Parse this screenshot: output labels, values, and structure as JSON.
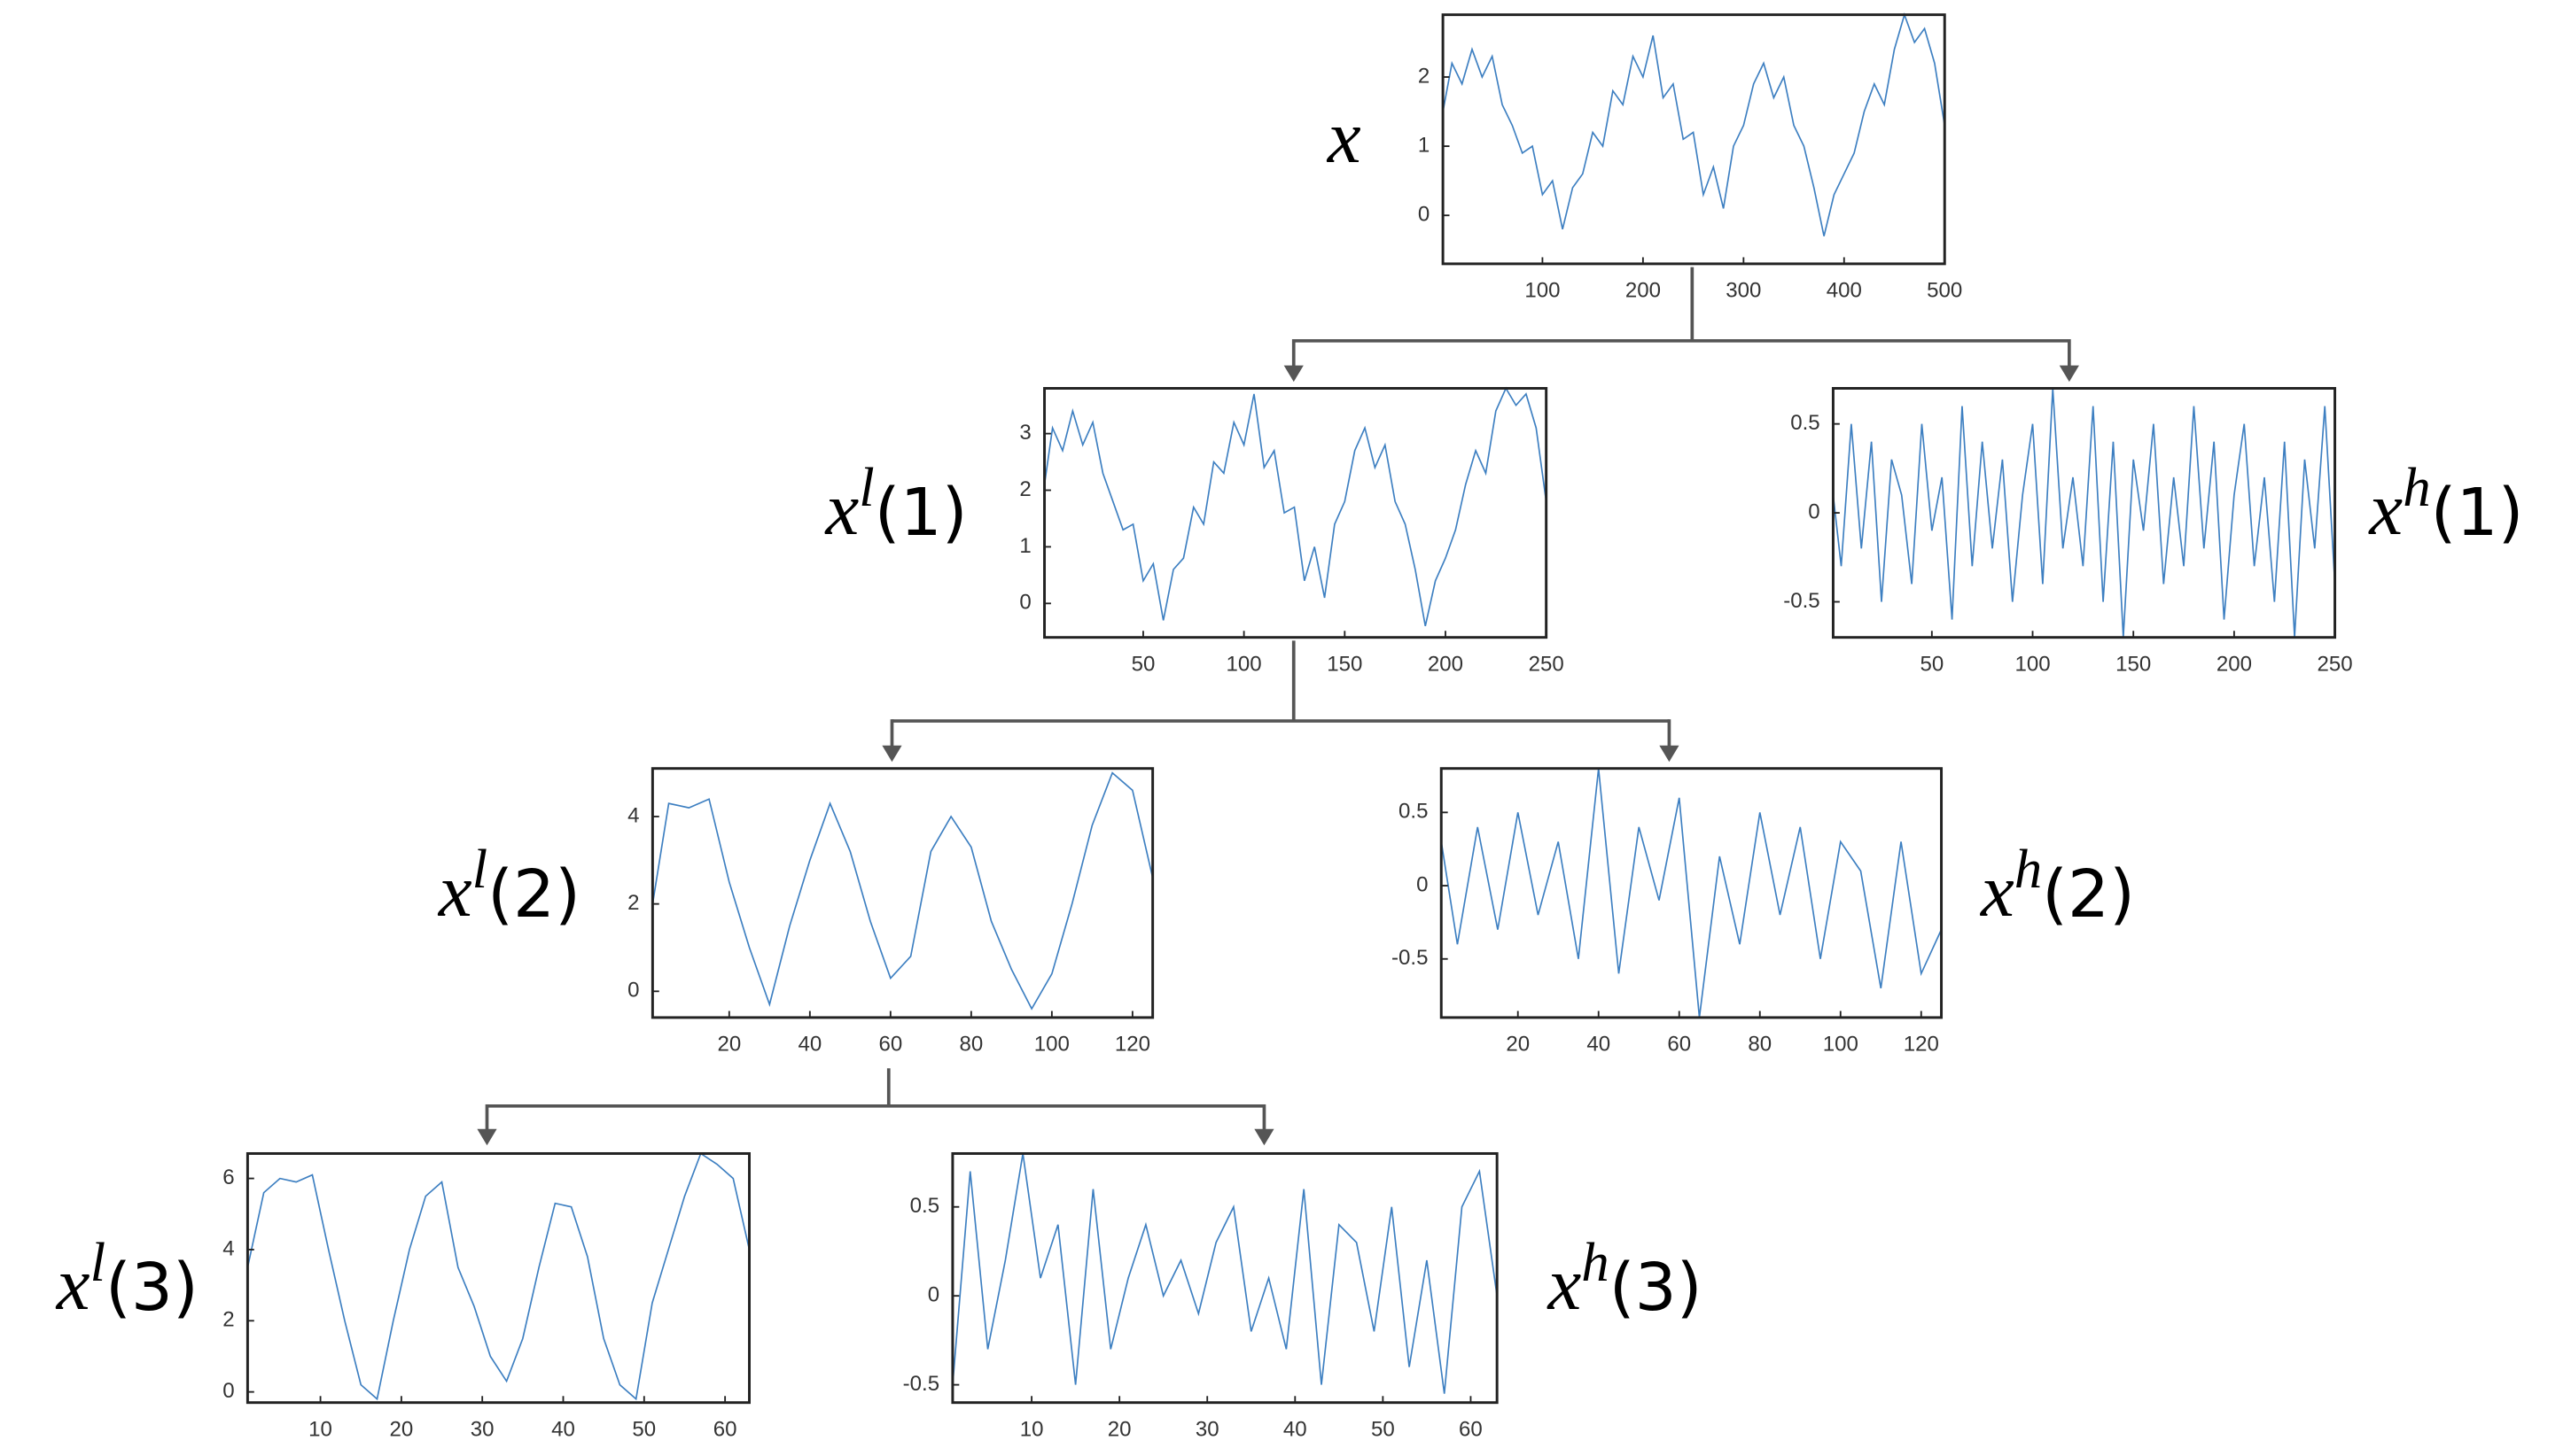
{
  "chart_data": [
    {
      "type": "line",
      "label": {
        "base": "x"
      },
      "color": "#3d7fc1",
      "x": [
        1,
        10,
        20,
        30,
        40,
        50,
        60,
        70,
        80,
        90,
        100,
        110,
        120,
        130,
        140,
        150,
        160,
        170,
        180,
        190,
        200,
        210,
        220,
        230,
        240,
        250,
        260,
        270,
        280,
        290,
        300,
        310,
        320,
        330,
        340,
        350,
        360,
        370,
        380,
        390,
        400,
        410,
        420,
        430,
        440,
        450,
        460,
        470,
        480,
        490,
        500
      ],
      "values": [
        1.5,
        2.2,
        1.9,
        2.4,
        2.0,
        2.3,
        1.6,
        1.3,
        0.9,
        1.0,
        0.3,
        0.5,
        -0.2,
        0.4,
        0.6,
        1.2,
        1.0,
        1.8,
        1.6,
        2.3,
        2.0,
        2.6,
        1.7,
        1.9,
        1.1,
        1.2,
        0.3,
        0.7,
        0.1,
        1.0,
        1.3,
        1.9,
        2.2,
        1.7,
        2.0,
        1.3,
        1.0,
        0.4,
        -0.3,
        0.3,
        0.6,
        0.9,
        1.5,
        1.9,
        1.6,
        2.4,
        2.9,
        2.5,
        2.7,
        2.2,
        1.3
      ],
      "xlim": [
        1,
        500
      ],
      "ylim": [
        -0.7,
        2.9
      ],
      "xticks": [
        100,
        200,
        300,
        400,
        500
      ],
      "yticks": [
        0,
        1,
        2
      ]
    },
    {
      "type": "line",
      "label": {
        "base": "x",
        "sup": "l",
        "index": "(1)"
      },
      "color": "#3d7fc1",
      "x": [
        1,
        5,
        10,
        15,
        20,
        25,
        30,
        35,
        40,
        45,
        50,
        55,
        60,
        65,
        70,
        75,
        80,
        85,
        90,
        95,
        100,
        105,
        110,
        115,
        120,
        125,
        130,
        135,
        140,
        145,
        150,
        155,
        160,
        165,
        170,
        175,
        180,
        185,
        190,
        195,
        200,
        205,
        210,
        215,
        220,
        225,
        230,
        235,
        240,
        245,
        250
      ],
      "values": [
        2.1,
        3.1,
        2.7,
        3.4,
        2.8,
        3.2,
        2.3,
        1.8,
        1.3,
        1.4,
        0.4,
        0.7,
        -0.3,
        0.6,
        0.8,
        1.7,
        1.4,
        2.5,
        2.3,
        3.2,
        2.8,
        3.7,
        2.4,
        2.7,
        1.6,
        1.7,
        0.4,
        1.0,
        0.1,
        1.4,
        1.8,
        2.7,
        3.1,
        2.4,
        2.8,
        1.8,
        1.4,
        0.6,
        -0.4,
        0.4,
        0.8,
        1.3,
        2.1,
        2.7,
        2.3,
        3.4,
        3.8,
        3.5,
        3.7,
        3.1,
        1.8
      ],
      "xlim": [
        1,
        250
      ],
      "ylim": [
        -0.6,
        3.8
      ],
      "xticks": [
        50,
        100,
        150,
        200,
        250
      ],
      "yticks": [
        0,
        1,
        2,
        3
      ]
    },
    {
      "type": "line",
      "label": {
        "base": "x",
        "sup": "h",
        "index": "(1)"
      },
      "color": "#3d7fc1",
      "x": [
        1,
        5,
        10,
        15,
        20,
        25,
        30,
        35,
        40,
        45,
        50,
        55,
        60,
        65,
        70,
        75,
        80,
        85,
        90,
        95,
        100,
        105,
        110,
        115,
        120,
        125,
        130,
        135,
        140,
        145,
        150,
        155,
        160,
        165,
        170,
        175,
        180,
        185,
        190,
        195,
        200,
        205,
        210,
        215,
        220,
        225,
        230,
        235,
        240,
        245,
        250
      ],
      "values": [
        0.1,
        -0.3,
        0.5,
        -0.2,
        0.4,
        -0.5,
        0.3,
        0.1,
        -0.4,
        0.5,
        -0.1,
        0.2,
        -0.6,
        0.6,
        -0.3,
        0.4,
        -0.2,
        0.3,
        -0.5,
        0.1,
        0.5,
        -0.4,
        0.7,
        -0.2,
        0.2,
        -0.3,
        0.6,
        -0.5,
        0.4,
        -0.7,
        0.3,
        -0.1,
        0.5,
        -0.4,
        0.2,
        -0.3,
        0.6,
        -0.2,
        0.4,
        -0.6,
        0.1,
        0.5,
        -0.3,
        0.2,
        -0.5,
        0.4,
        -0.7,
        0.3,
        -0.2,
        0.6,
        -0.4
      ],
      "xlim": [
        1,
        250
      ],
      "ylim": [
        -0.7,
        0.7
      ],
      "xticks": [
        50,
        100,
        150,
        200,
        250
      ],
      "yticks": [
        -0.5,
        0,
        0.5
      ]
    },
    {
      "type": "line",
      "label": {
        "base": "x",
        "sup": "l",
        "index": "(2)"
      },
      "color": "#3d7fc1",
      "x": [
        1,
        5,
        10,
        15,
        20,
        25,
        30,
        35,
        40,
        45,
        50,
        55,
        60,
        65,
        70,
        75,
        80,
        85,
        90,
        95,
        100,
        105,
        110,
        115,
        120,
        125
      ],
      "values": [
        2.0,
        4.3,
        4.2,
        4.4,
        2.5,
        1.0,
        -0.3,
        1.5,
        3.0,
        4.3,
        3.2,
        1.6,
        0.3,
        0.8,
        3.2,
        4.0,
        3.3,
        1.6,
        0.5,
        -0.4,
        0.4,
        2.0,
        3.8,
        5.0,
        4.6,
        2.6
      ],
      "xlim": [
        1,
        125
      ],
      "ylim": [
        -0.6,
        5.1
      ],
      "xticks": [
        20,
        40,
        60,
        80,
        100,
        120
      ],
      "yticks": [
        0,
        2,
        4
      ]
    },
    {
      "type": "line",
      "label": {
        "base": "x",
        "sup": "h",
        "index": "(2)"
      },
      "color": "#3d7fc1",
      "x": [
        1,
        5,
        10,
        15,
        20,
        25,
        30,
        35,
        40,
        45,
        50,
        55,
        60,
        65,
        70,
        75,
        80,
        85,
        90,
        95,
        100,
        105,
        110,
        115,
        120,
        125
      ],
      "values": [
        0.3,
        -0.4,
        0.4,
        -0.3,
        0.5,
        -0.2,
        0.3,
        -0.5,
        0.8,
        -0.6,
        0.4,
        -0.1,
        0.6,
        -0.9,
        0.2,
        -0.4,
        0.5,
        -0.2,
        0.4,
        -0.5,
        0.3,
        0.1,
        -0.7,
        0.3,
        -0.6,
        -0.3
      ],
      "xlim": [
        1,
        125
      ],
      "ylim": [
        -0.9,
        0.8
      ],
      "xticks": [
        20,
        40,
        60,
        80,
        100,
        120
      ],
      "yticks": [
        -0.5,
        0,
        0.5
      ]
    },
    {
      "type": "line",
      "label": {
        "base": "x",
        "sup": "l",
        "index": "(3)"
      },
      "color": "#3d7fc1",
      "x": [
        1,
        3,
        5,
        7,
        9,
        11,
        13,
        15,
        17,
        19,
        21,
        23,
        25,
        27,
        29,
        31,
        33,
        35,
        37,
        39,
        41,
        43,
        45,
        47,
        49,
        51,
        53,
        55,
        57,
        59,
        61,
        63
      ],
      "values": [
        3.5,
        5.6,
        6.0,
        5.9,
        6.1,
        4.0,
        2.0,
        0.2,
        -0.2,
        2.0,
        4.0,
        5.5,
        5.9,
        3.5,
        2.4,
        1.0,
        0.3,
        1.5,
        3.5,
        5.3,
        5.2,
        3.8,
        1.5,
        0.2,
        -0.2,
        2.5,
        4.0,
        5.5,
        6.7,
        6.4,
        6.0,
        4.0
      ],
      "xlim": [
        1,
        63
      ],
      "ylim": [
        -0.3,
        6.7
      ],
      "xticks": [
        10,
        20,
        30,
        40,
        50,
        60
      ],
      "yticks": [
        0,
        2,
        4,
        6
      ]
    },
    {
      "type": "line",
      "label": {
        "base": "x",
        "sup": "h",
        "index": "(3)"
      },
      "color": "#3d7fc1",
      "x": [
        1,
        3,
        5,
        7,
        9,
        11,
        13,
        15,
        17,
        19,
        21,
        23,
        25,
        27,
        29,
        31,
        33,
        35,
        37,
        39,
        41,
        43,
        45,
        47,
        49,
        51,
        53,
        55,
        57,
        59,
        61,
        63
      ],
      "values": [
        -0.5,
        0.7,
        -0.3,
        0.2,
        0.8,
        0.1,
        0.4,
        -0.5,
        0.6,
        -0.3,
        0.1,
        0.4,
        0.0,
        0.2,
        -0.1,
        0.3,
        0.5,
        -0.2,
        0.1,
        -0.3,
        0.6,
        -0.5,
        0.4,
        0.3,
        -0.2,
        0.5,
        -0.4,
        0.2,
        -0.55,
        0.5,
        0.7,
        0.0
      ],
      "xlim": [
        1,
        63
      ],
      "ylim": [
        -0.6,
        0.8
      ],
      "xticks": [
        10,
        20,
        30,
        40,
        50,
        60
      ],
      "yticks": [
        -0.5,
        0,
        0.5
      ]
    }
  ]
}
